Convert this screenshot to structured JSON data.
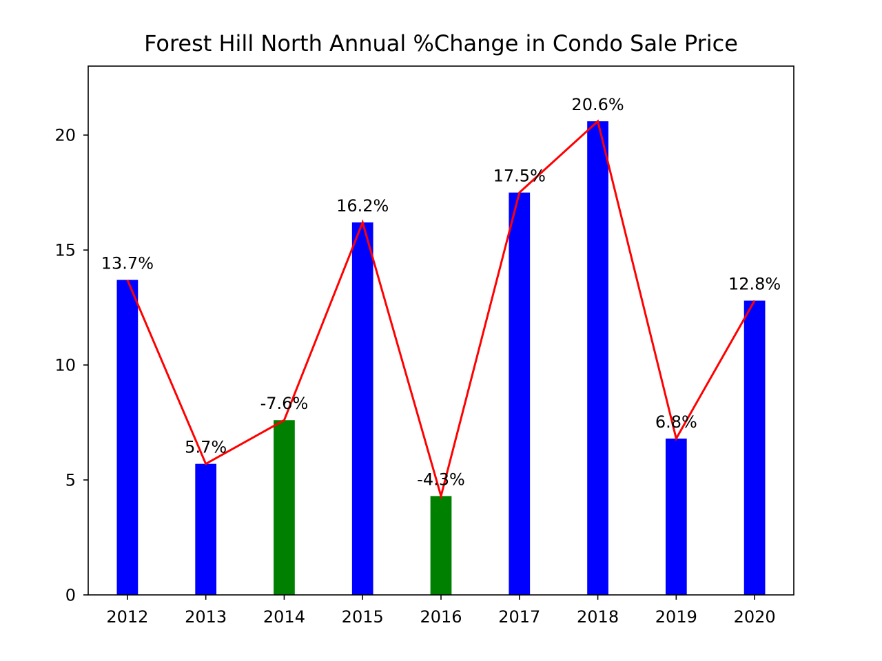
{
  "chart_data": {
    "type": "bar",
    "title": "Forest Hill North Annual %Change in Condo Sale Price",
    "xlabel": "",
    "ylabel": "",
    "categories": [
      "2012",
      "2013",
      "2014",
      "2015",
      "2016",
      "2017",
      "2018",
      "2019",
      "2020"
    ],
    "values": [
      13.7,
      5.7,
      7.6,
      16.2,
      4.3,
      17.5,
      20.6,
      6.8,
      12.8
    ],
    "data_labels": [
      "13.7%",
      "5.7%",
      "-7.6%",
      "16.2%",
      "-4.3%",
      "17.5%",
      "20.6%",
      "6.8%",
      "12.8%"
    ],
    "bar_colors": [
      "#0000ff",
      "#0000ff",
      "#008000",
      "#0000ff",
      "#008000",
      "#0000ff",
      "#0000ff",
      "#0000ff",
      "#0000ff"
    ],
    "line": {
      "color": "#ff0000",
      "values": [
        13.7,
        5.7,
        7.6,
        16.2,
        4.3,
        17.5,
        20.6,
        6.8,
        12.8
      ]
    },
    "ylim": [
      0,
      23
    ],
    "yticks": [
      0,
      5,
      10,
      15,
      20
    ],
    "grid": false
  }
}
